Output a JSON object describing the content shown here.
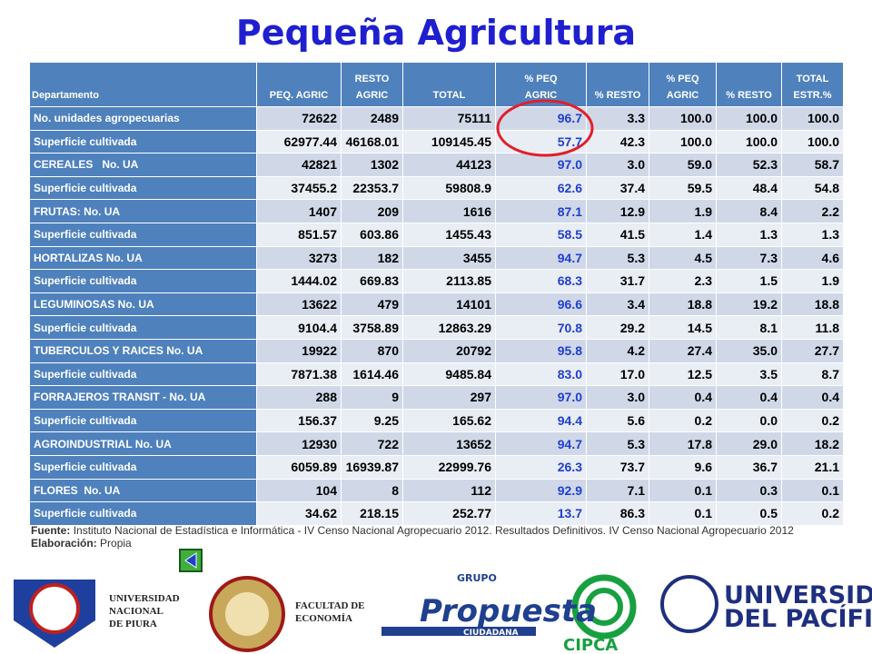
{
  "header": {
    "title": "Pequeña Agricultura"
  },
  "table": {
    "columns": [
      [
        "Departamento"
      ],
      [
        "PEQ. AGRIC"
      ],
      [
        "RESTO",
        "AGRIC"
      ],
      [
        "TOTAL"
      ],
      [
        "% PEQ",
        "AGRIC"
      ],
      [
        "% RESTO"
      ],
      [
        "% PEQ",
        "AGRIC"
      ],
      [
        "% RESTO"
      ],
      [
        "TOTAL",
        "ESTR.%"
      ]
    ],
    "rows": [
      [
        "No. unidades agropecuarias",
        "72622",
        "2489",
        "75111",
        "96.7",
        "3.3",
        "100.0",
        "100.0",
        "100.0"
      ],
      [
        "Superficie cultivada",
        "62977.44",
        "46168.01",
        "109145.45",
        "57.7",
        "42.3",
        "100.0",
        "100.0",
        "100.0"
      ],
      [
        "CEREALES   No. UA",
        "42821",
        "1302",
        "44123",
        "97.0",
        "3.0",
        "59.0",
        "52.3",
        "58.7"
      ],
      [
        "Superficie cultivada",
        "37455.2",
        "22353.7",
        "59808.9",
        "62.6",
        "37.4",
        "59.5",
        "48.4",
        "54.8"
      ],
      [
        "FRUTAS: No. UA",
        "1407",
        "209",
        "1616",
        "87.1",
        "12.9",
        "1.9",
        "8.4",
        "2.2"
      ],
      [
        "Superficie cultivada",
        "851.57",
        "603.86",
        "1455.43",
        "58.5",
        "41.5",
        "1.4",
        "1.3",
        "1.3"
      ],
      [
        "HORTALIZAS No. UA",
        "3273",
        "182",
        "3455",
        "94.7",
        "5.3",
        "4.5",
        "7.3",
        "4.6"
      ],
      [
        "Superficie cultivada",
        "1444.02",
        "669.83",
        "2113.85",
        "68.3",
        "31.7",
        "2.3",
        "1.5",
        "1.9"
      ],
      [
        "LEGUMINOSAS No. UA",
        "13622",
        "479",
        "14101",
        "96.6",
        "3.4",
        "18.8",
        "19.2",
        "18.8"
      ],
      [
        "Superficie cultivada",
        "9104.4",
        "3758.89",
        "12863.29",
        "70.8",
        "29.2",
        "14.5",
        "8.1",
        "11.8"
      ],
      [
        "TUBERCULOS Y RAICES No. UA",
        "19922",
        "870",
        "20792",
        "95.8",
        "4.2",
        "27.4",
        "35.0",
        "27.7"
      ],
      [
        "Superficie cultivada",
        "7871.38",
        "1614.46",
        "9485.84",
        "83.0",
        "17.0",
        "12.5",
        "3.5",
        "8.7"
      ],
      [
        "FORRAJEROS TRANSIT - No. UA",
        "288",
        "9",
        "297",
        "97.0",
        "3.0",
        "0.4",
        "0.4",
        "0.4"
      ],
      [
        "Superficie cultivada",
        "156.37",
        "9.25",
        "165.62",
        "94.4",
        "5.6",
        "0.2",
        "0.0",
        "0.2"
      ],
      [
        "AGROINDUSTRIAL No. UA",
        "12930",
        "722",
        "13652",
        "94.7",
        "5.3",
        "17.8",
        "29.0",
        "18.2"
      ],
      [
        "Superficie cultivada",
        "6059.89",
        "16939.87",
        "22999.76",
        "26.3",
        "73.7",
        "9.6",
        "36.7",
        "21.1"
      ],
      [
        "FLORES  No. UA",
        "104",
        "8",
        "112",
        "92.9",
        "7.1",
        "0.1",
        "0.3",
        "0.1"
      ],
      [
        "Superficie cultivada",
        "34.62",
        "218.15",
        "252.77",
        "13.7",
        "86.3",
        "0.1",
        "0.5",
        "0.2"
      ]
    ]
  },
  "footer": {
    "source_label": "Fuente:",
    "source_text": "Instituto Nacional de Estadística e Informática - IV Censo Nacional Agropecuario 2012. Resultados Definitivos. IV Censo Nacional Agropecuario 2012",
    "credit_label": "Elaboración:",
    "credit_text": "Propia"
  },
  "logos": {
    "unp": [
      "UNIVERSIDAD",
      "NACIONAL",
      "DE PIURA"
    ],
    "faculty": [
      "FACULTAD DE",
      "ECONOMÍA"
    ],
    "propuesta": {
      "top": "GRUPO",
      "main": "Propuesta",
      "bottom": "CIUDADANA"
    },
    "cipca": "CIPCA",
    "pacifico": [
      "UNIVERSIDAD",
      "DEL PACÍFICO"
    ]
  }
}
